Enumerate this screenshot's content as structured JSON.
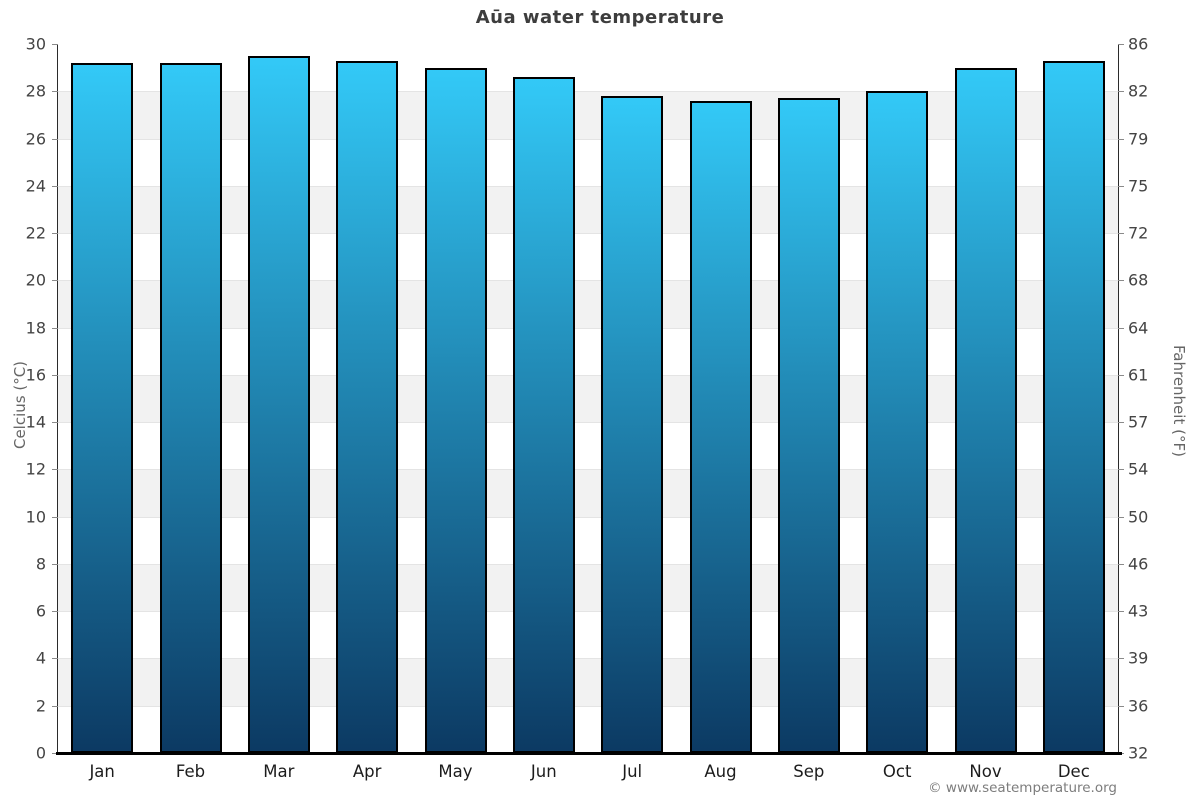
{
  "title": "Aūa water temperature",
  "footer": "© www.seatemperature.org",
  "axes": {
    "left_label": "Celcius (°C)",
    "right_label": "Fahrenheit (°F)"
  },
  "chart_data": {
    "type": "bar",
    "title": "Aūa water temperature",
    "categories": [
      "Jan",
      "Feb",
      "Mar",
      "Apr",
      "May",
      "Jun",
      "Jul",
      "Aug",
      "Sep",
      "Oct",
      "Nov",
      "Dec"
    ],
    "values": [
      29.2,
      29.2,
      29.5,
      29.3,
      29.0,
      28.6,
      27.8,
      27.6,
      27.7,
      28.0,
      29.0,
      29.3
    ],
    "unit": "°C",
    "xlabel": "",
    "ylabel_left": "Celcius (°C)",
    "ylabel_right": "Fahrenheit (°F)",
    "ylim_celsius": [
      0,
      30
    ],
    "celsius_ticks": [
      30,
      28,
      26,
      24,
      22,
      20,
      18,
      16,
      14,
      12,
      10,
      8,
      6,
      4,
      2,
      0
    ],
    "fahrenheit_ticks": [
      86,
      82,
      79,
      75,
      72,
      68,
      64,
      61,
      57,
      54,
      50,
      46,
      43,
      39,
      36,
      32
    ],
    "grid": "alternating horizontal bands, gridline at every 2°C",
    "legend": "none",
    "colors": {
      "bar_gradient_top": "#33c9f7",
      "bar_gradient_bottom": "#0c3a63",
      "bar_border": "#000000",
      "band_white": "#ffffff",
      "band_gray": "#f2f2f2",
      "gridline": "#e4e4e4",
      "axis_bottom": "#000000",
      "title_text": "#3d3d3d"
    }
  }
}
